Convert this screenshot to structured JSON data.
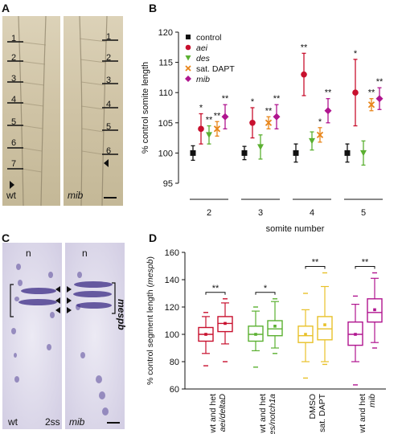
{
  "panels": {
    "a": "A",
    "b": "B",
    "c": "C",
    "d": "D"
  },
  "panel_a": {
    "wt_numbers": [
      "1",
      "2",
      "3",
      "4",
      "5",
      "6",
      "7"
    ],
    "mib_numbers": [
      "1",
      "2",
      "3",
      "4",
      "5",
      "6"
    ],
    "wt_label": "wt",
    "mib_label": "mib"
  },
  "panel_c": {
    "n_left": "n",
    "n_right": "n",
    "gene_label": "mespb",
    "wt_label": "wt",
    "stage_label": "2ss",
    "mib_label": "mib"
  },
  "chart_data": [
    {
      "type": "scatter",
      "ylabel": "% control somite length",
      "xlabel": "somite number",
      "ylim": [
        95,
        120
      ],
      "yticks": [
        95,
        100,
        105,
        110,
        115,
        120
      ],
      "categories": [
        "2",
        "3",
        "4",
        "5"
      ],
      "legend_position": "top-left",
      "series": [
        {
          "name": "control",
          "color": "#111111",
          "marker": "square",
          "values": [
            100,
            100,
            100,
            100
          ],
          "err": [
            1.2,
            1.1,
            1.5,
            1.5
          ]
        },
        {
          "name": "aei",
          "color": "#c8102e",
          "marker": "circle",
          "values": [
            104,
            105,
            113,
            110
          ],
          "err": [
            2.5,
            2.5,
            3.5,
            5.5
          ],
          "sig": [
            "*",
            "*",
            "**",
            "*"
          ]
        },
        {
          "name": "des",
          "color": "#5bb031",
          "marker": "triangle-down",
          "values": [
            103,
            101,
            102,
            100
          ],
          "err": [
            1.5,
            2.0,
            1.5,
            2.0
          ],
          "sig": [
            "**",
            "",
            "",
            ""
          ]
        },
        {
          "name": "sat. DAPT",
          "color": "#e8851a",
          "marker": "x",
          "values": [
            104,
            105,
            103,
            108
          ],
          "err": [
            1.2,
            1.0,
            1.2,
            1.0
          ],
          "sig": [
            "**",
            "**",
            "*",
            "**"
          ]
        },
        {
          "name": "mib",
          "color": "#b0158f",
          "marker": "diamond",
          "values": [
            106,
            106,
            107,
            109
          ],
          "err": [
            2.0,
            2.0,
            2.0,
            1.8
          ],
          "sig": [
            "**",
            "**",
            "**",
            "**"
          ]
        }
      ]
    },
    {
      "type": "box",
      "ylabel": "% control segment length (mespb)",
      "ylabel_plain": "% control segment length (",
      "ylabel_italic": "mespb",
      "ylabel_close": ")",
      "ylim": [
        60,
        160
      ],
      "yticks": [
        60,
        80,
        100,
        120,
        140,
        160
      ],
      "groups": [
        {
          "label_plain": "wt and het",
          "label_italic": "aei/deltaD",
          "color": "#c8102e",
          "sig": "**",
          "boxes": [
            {
              "q1": 95,
              "median": 100,
              "q3": 105,
              "whisker_low": 86,
              "whisker_high": 113,
              "mean": 100,
              "outliers": [
                77,
                116
              ]
            },
            {
              "q1": 102,
              "median": 108,
              "q3": 113,
              "whisker_low": 93,
              "whisker_high": 123,
              "mean": 108,
              "outliers": [
                80,
                126
              ]
            }
          ]
        },
        {
          "label_plain": "wt and het",
          "label_italic": "des/notch1a",
          "color": "#5bb031",
          "sig": "*",
          "boxes": [
            {
              "q1": 95,
              "median": 100,
              "q3": 106,
              "whisker_low": 88,
              "whisker_high": 117,
              "mean": 100,
              "outliers": [
                76,
                120
              ]
            },
            {
              "q1": 99,
              "median": 104,
              "q3": 110,
              "whisker_low": 90,
              "whisker_high": 124,
              "mean": 106,
              "outliers": [
                86,
                126
              ]
            }
          ]
        },
        {
          "label_plain": "DMSO",
          "label_italic": "",
          "label_plain2": "sat. DAPT",
          "color": "#e8c12a",
          "sig": "**",
          "boxes": [
            {
              "q1": 94,
              "median": 99,
              "q3": 106,
              "whisker_low": 80,
              "whisker_high": 118,
              "mean": 100,
              "outliers": [
                68,
                130
              ]
            },
            {
              "q1": 96,
              "median": 104,
              "q3": 113,
              "whisker_low": 80,
              "whisker_high": 135,
              "mean": 107,
              "outliers": [
                78,
                145
              ]
            }
          ]
        },
        {
          "label_plain": "wt and het",
          "label_italic": "mib",
          "color": "#b0158f",
          "sig": "**",
          "boxes": [
            {
              "q1": 92,
              "median": 100,
              "q3": 109,
              "whisker_low": 80,
              "whisker_high": 122,
              "mean": 100,
              "outliers": [
                63,
                128
              ]
            },
            {
              "q1": 109,
              "median": 116,
              "q3": 126,
              "whisker_low": 94,
              "whisker_high": 141,
              "mean": 118,
              "outliers": [
                90,
                145
              ]
            }
          ]
        }
      ]
    }
  ]
}
